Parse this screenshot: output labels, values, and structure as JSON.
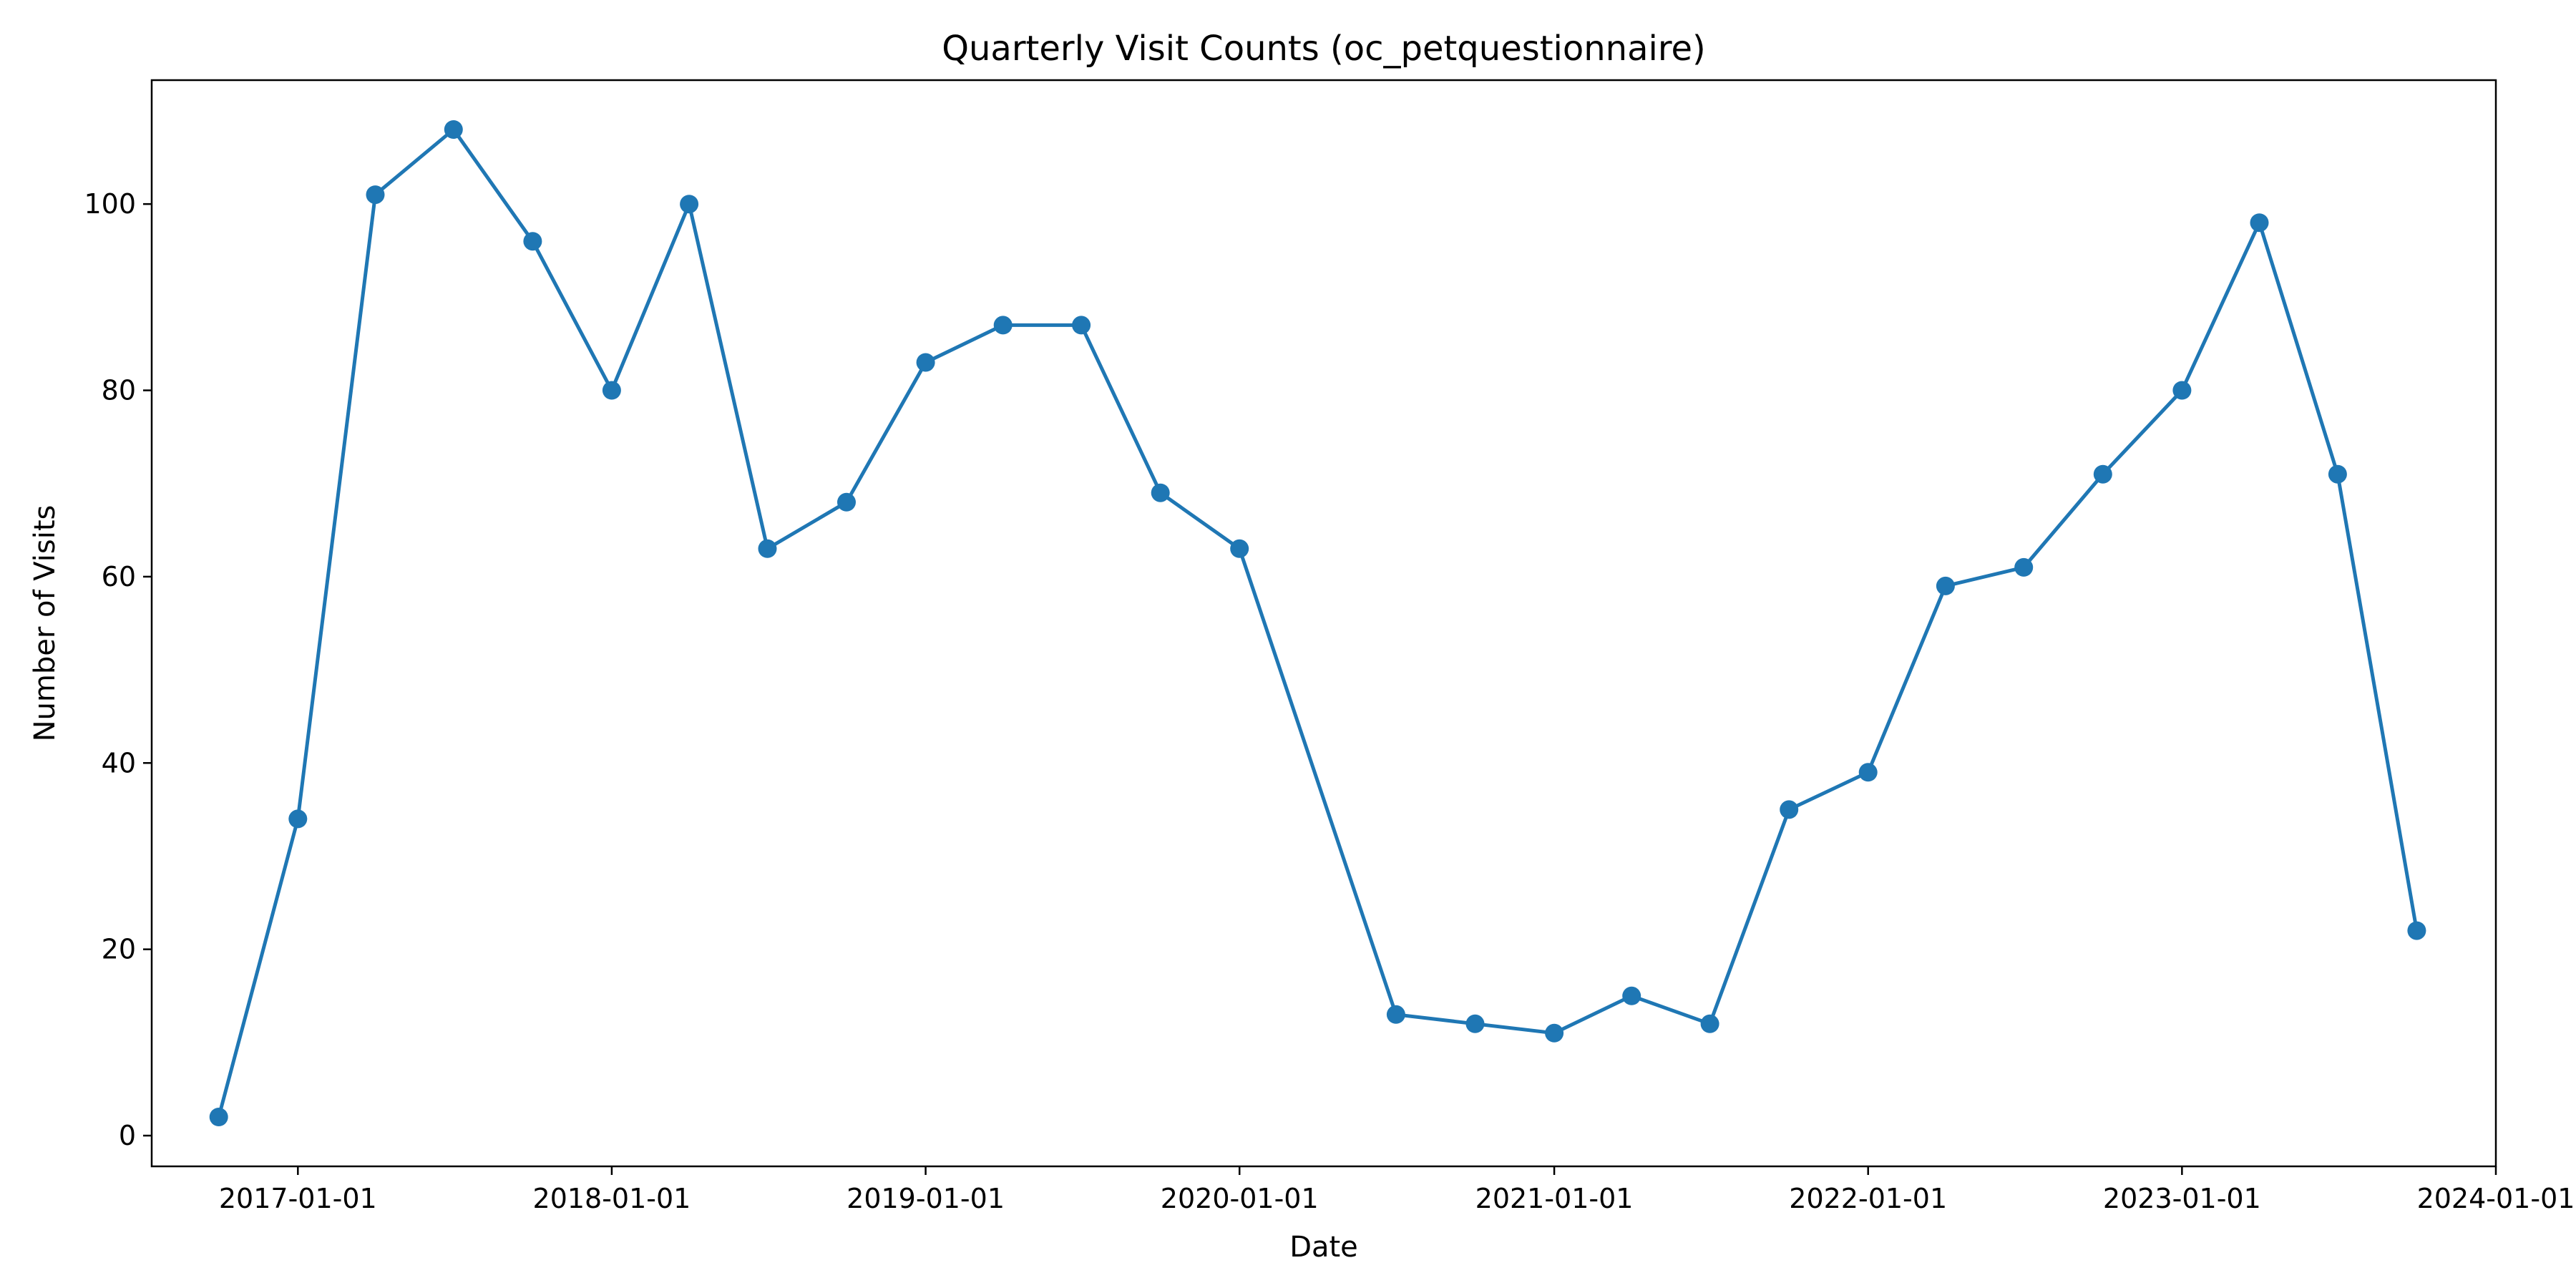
{
  "chart_data": {
    "type": "line",
    "title": "Quarterly Visit Counts (oc_petquestionnaire)",
    "xlabel": "Date",
    "ylabel": "Number of Visits",
    "x_axis_type": "date",
    "xlim": [
      "2016-07-15",
      "2024-01-01"
    ],
    "ylim": [
      -3.3,
      113.3
    ],
    "x_ticks": [
      "2017-01-01",
      "2018-01-01",
      "2019-01-01",
      "2020-01-01",
      "2021-01-01",
      "2022-01-01",
      "2023-01-01",
      "2024-01-01"
    ],
    "y_ticks": [
      0,
      20,
      40,
      60,
      80,
      100
    ],
    "grid": false,
    "legend": "none",
    "series": [
      {
        "color": "#1f77b4",
        "marker": "circle",
        "points": [
          {
            "x": "2016-10-01",
            "y": 2
          },
          {
            "x": "2017-01-01",
            "y": 34
          },
          {
            "x": "2017-04-01",
            "y": 101
          },
          {
            "x": "2017-07-01",
            "y": 108
          },
          {
            "x": "2017-10-01",
            "y": 96
          },
          {
            "x": "2018-01-01",
            "y": 80
          },
          {
            "x": "2018-04-01",
            "y": 100
          },
          {
            "x": "2018-07-01",
            "y": 63
          },
          {
            "x": "2018-10-01",
            "y": 68
          },
          {
            "x": "2019-01-01",
            "y": 83
          },
          {
            "x": "2019-04-01",
            "y": 87
          },
          {
            "x": "2019-07-01",
            "y": 87
          },
          {
            "x": "2019-10-01",
            "y": 69
          },
          {
            "x": "2020-01-01",
            "y": 63
          },
          {
            "x": "2020-07-01",
            "y": 13
          },
          {
            "x": "2020-10-01",
            "y": 12
          },
          {
            "x": "2021-01-01",
            "y": 11
          },
          {
            "x": "2021-04-01",
            "y": 15
          },
          {
            "x": "2021-07-01",
            "y": 12
          },
          {
            "x": "2021-10-01",
            "y": 35
          },
          {
            "x": "2022-01-01",
            "y": 39
          },
          {
            "x": "2022-04-01",
            "y": 59
          },
          {
            "x": "2022-07-01",
            "y": 61
          },
          {
            "x": "2022-10-01",
            "y": 71
          },
          {
            "x": "2023-01-01",
            "y": 80
          },
          {
            "x": "2023-04-01",
            "y": 98
          },
          {
            "x": "2023-07-01",
            "y": 71
          },
          {
            "x": "2023-10-01",
            "y": 22
          }
        ]
      }
    ]
  }
}
